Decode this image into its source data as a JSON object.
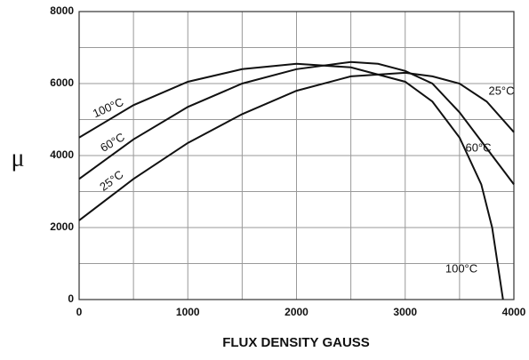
{
  "chart_data": {
    "type": "line",
    "xlabel": "FLUX DENSITY GAUSS",
    "ylabel": "μ",
    "xlim": [
      0,
      4000
    ],
    "xticks": [
      0,
      1000,
      2000,
      3000,
      4000
    ],
    "ylim": [
      0,
      8000
    ],
    "yticks": [
      0,
      2000,
      4000,
      6000,
      8000
    ],
    "grid": true,
    "minor_grid": true,
    "series": [
      {
        "name": "100°C",
        "color": "#111111",
        "x": [
          0,
          500,
          1000,
          1500,
          2000,
          2500,
          3000,
          3250,
          3500,
          3700,
          3800,
          3900
        ],
        "values": [
          4500,
          5400,
          6050,
          6400,
          6550,
          6450,
          6050,
          5500,
          4500,
          3200,
          2000,
          0
        ]
      },
      {
        "name": "60°C",
        "color": "#111111",
        "x": [
          0,
          500,
          1000,
          1500,
          2000,
          2500,
          2750,
          3000,
          3250,
          3500,
          3750,
          4000
        ],
        "values": [
          3350,
          4450,
          5350,
          6000,
          6400,
          6600,
          6550,
          6350,
          6000,
          5200,
          4200,
          3200
        ]
      },
      {
        "name": "25°C",
        "color": "#111111",
        "x": [
          0,
          500,
          1000,
          1500,
          2000,
          2500,
          3000,
          3250,
          3500,
          3750,
          4000
        ],
        "values": [
          2200,
          3350,
          4350,
          5150,
          5800,
          6200,
          6300,
          6200,
          6000,
          5500,
          4650
        ]
      }
    ]
  }
}
